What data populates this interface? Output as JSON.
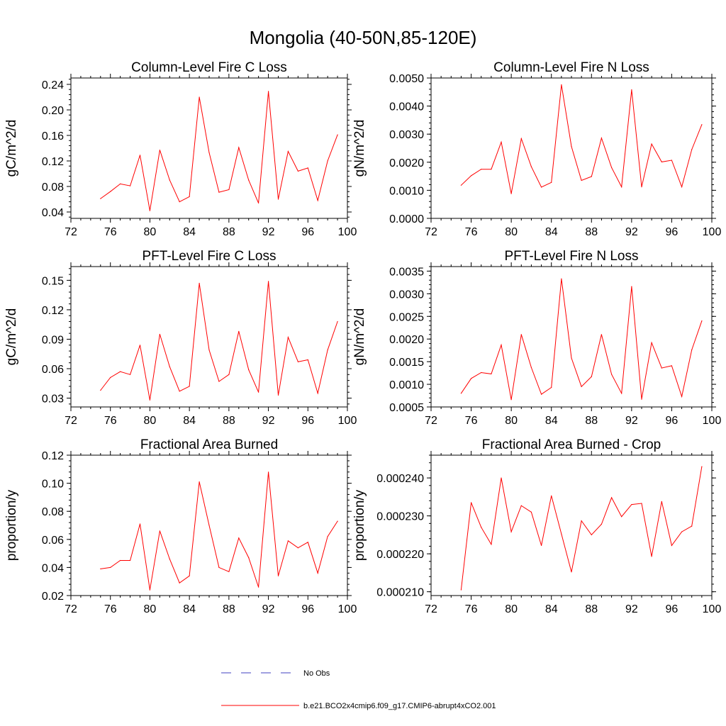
{
  "figure": {
    "title": "Mongolia (40-50N,85-120E)"
  },
  "legend": [
    {
      "label": "No Obs",
      "color": "#4040c0",
      "dash": "dashed"
    },
    {
      "label": "b.e21.BCO2x4cmip6.f09_g17.CMIP6-abrupt4xCO2.001",
      "color": "#ff0000",
      "dash": "solid"
    }
  ],
  "chart_data": [
    {
      "type": "line",
      "title": "Column-Level Fire C Loss",
      "ylabel": "gC/m^2/d",
      "xlabel": "",
      "xlim": [
        72,
        100
      ],
      "ylim": [
        0.03,
        0.25
      ],
      "xticks": [
        72,
        76,
        80,
        84,
        88,
        92,
        96,
        100
      ],
      "xtick_labels": [
        "72",
        "76",
        "80",
        "84",
        "88",
        "92",
        "96",
        "100"
      ],
      "yticks": [
        0.04,
        0.08,
        0.12,
        0.16,
        0.2,
        0.24
      ],
      "ytick_labels": [
        "0.04",
        "0.08",
        "0.12",
        "0.16",
        "0.20",
        "0.24"
      ],
      "series": [
        {
          "name": "b.e21.BCO2x4cmip6.f09_g17.CMIP6-abrupt4xCO2.001",
          "color": "#ff0000",
          "x": [
            75,
            76,
            77,
            78,
            79,
            80,
            81,
            82,
            83,
            84,
            85,
            86,
            87,
            88,
            89,
            90,
            91,
            92,
            93,
            94,
            95,
            96,
            97,
            98,
            99
          ],
          "y": [
            0.061,
            0.072,
            0.084,
            0.081,
            0.129,
            0.042,
            0.137,
            0.09,
            0.056,
            0.064,
            0.22,
            0.133,
            0.071,
            0.075,
            0.141,
            0.09,
            0.054,
            0.229,
            0.06,
            0.135,
            0.104,
            0.109,
            0.058,
            0.12,
            0.161
          ]
        }
      ]
    },
    {
      "type": "line",
      "title": "Column-Level Fire N Loss",
      "ylabel": "gN/m^2/d",
      "xlabel": "",
      "xlim": [
        72,
        100
      ],
      "ylim": [
        0.0,
        0.005
      ],
      "xticks": [
        72,
        76,
        80,
        84,
        88,
        92,
        96,
        100
      ],
      "xtick_labels": [
        "72",
        "76",
        "80",
        "84",
        "88",
        "92",
        "96",
        "100"
      ],
      "yticks": [
        0.0,
        0.001,
        0.002,
        0.003,
        0.004,
        0.005
      ],
      "ytick_labels": [
        "0.0000",
        "0.0010",
        "0.0020",
        "0.0030",
        "0.0040",
        "0.0050"
      ],
      "series": [
        {
          "name": "b.e21.BCO2x4cmip6.f09_g17.CMIP6-abrupt4xCO2.001",
          "color": "#ff0000",
          "x": [
            75,
            76,
            77,
            78,
            79,
            80,
            81,
            82,
            83,
            84,
            85,
            86,
            87,
            88,
            89,
            90,
            91,
            92,
            93,
            94,
            95,
            96,
            97,
            98,
            99
          ],
          "y": [
            0.00118,
            0.00152,
            0.00175,
            0.00175,
            0.00272,
            0.00088,
            0.00284,
            0.00184,
            0.00111,
            0.00128,
            0.00476,
            0.00256,
            0.00135,
            0.00149,
            0.00286,
            0.00181,
            0.00112,
            0.00458,
            0.00112,
            0.00265,
            0.00201,
            0.00207,
            0.00112,
            0.00245,
            0.00334
          ]
        }
      ]
    },
    {
      "type": "line",
      "title": "PFT-Level Fire C Loss",
      "ylabel": "gC/m^2/d",
      "xlabel": "",
      "xlim": [
        72,
        100
      ],
      "ylim": [
        0.021,
        0.164
      ],
      "xticks": [
        72,
        76,
        80,
        84,
        88,
        92,
        96,
        100
      ],
      "xtick_labels": [
        "72",
        "76",
        "80",
        "84",
        "88",
        "92",
        "96",
        "100"
      ],
      "yticks": [
        0.03,
        0.06,
        0.09,
        0.12,
        0.15
      ],
      "ytick_labels": [
        "0.03",
        "0.06",
        "0.09",
        "0.12",
        "0.15"
      ],
      "series": [
        {
          "name": "b.e21.BCO2x4cmip6.f09_g17.CMIP6-abrupt4xCO2.001",
          "color": "#ff0000",
          "x": [
            75,
            76,
            77,
            78,
            79,
            80,
            81,
            82,
            83,
            84,
            85,
            86,
            87,
            88,
            89,
            90,
            91,
            92,
            93,
            94,
            95,
            96,
            97,
            98,
            99
          ],
          "y": [
            0.038,
            0.051,
            0.057,
            0.054,
            0.084,
            0.028,
            0.095,
            0.062,
            0.037,
            0.042,
            0.147,
            0.079,
            0.047,
            0.054,
            0.098,
            0.059,
            0.036,
            0.149,
            0.033,
            0.092,
            0.067,
            0.069,
            0.035,
            0.079,
            0.108
          ]
        }
      ]
    },
    {
      "type": "line",
      "title": "PFT-Level Fire N Loss",
      "ylabel": "gN/m^2/d",
      "xlabel": "",
      "xlim": [
        72,
        100
      ],
      "ylim": [
        0.0005,
        0.0036
      ],
      "xticks": [
        72,
        76,
        80,
        84,
        88,
        92,
        96,
        100
      ],
      "xtick_labels": [
        "72",
        "76",
        "80",
        "84",
        "88",
        "92",
        "96",
        "100"
      ],
      "yticks": [
        0.0005,
        0.001,
        0.0015,
        0.002,
        0.0025,
        0.003,
        0.0035
      ],
      "ytick_labels": [
        "0.0005",
        "0.0010",
        "0.0015",
        "0.0020",
        "0.0025",
        "0.0030",
        "0.0035"
      ],
      "series": [
        {
          "name": "b.e21.BCO2x4cmip6.f09_g17.CMIP6-abrupt4xCO2.001",
          "color": "#ff0000",
          "x": [
            75,
            76,
            77,
            78,
            79,
            80,
            81,
            82,
            83,
            84,
            85,
            86,
            87,
            88,
            89,
            90,
            91,
            92,
            93,
            94,
            95,
            96,
            97,
            98,
            99
          ],
          "y": [
            0.0008,
            0.00113,
            0.00126,
            0.00123,
            0.00187,
            0.00066,
            0.0021,
            0.00137,
            0.00078,
            0.00093,
            0.00333,
            0.00158,
            0.00095,
            0.00117,
            0.0021,
            0.00122,
            0.0008,
            0.00316,
            0.00067,
            0.00192,
            0.00136,
            0.00141,
            0.00073,
            0.00176,
            0.0024
          ]
        }
      ]
    },
    {
      "type": "line",
      "title": "Fractional Area Burned",
      "ylabel": "proportion/y",
      "xlabel": "",
      "xlim": [
        72,
        100
      ],
      "ylim": [
        0.02,
        0.12
      ],
      "xticks": [
        72,
        76,
        80,
        84,
        88,
        92,
        96,
        100
      ],
      "xtick_labels": [
        "72",
        "76",
        "80",
        "84",
        "88",
        "92",
        "96",
        "100"
      ],
      "yticks": [
        0.02,
        0.04,
        0.06,
        0.08,
        0.1,
        0.12
      ],
      "ytick_labels": [
        "0.02",
        "0.04",
        "0.06",
        "0.08",
        "0.10",
        "0.12"
      ],
      "series": [
        {
          "name": "b.e21.BCO2x4cmip6.f09_g17.CMIP6-abrupt4xCO2.001",
          "color": "#ff0000",
          "x": [
            75,
            76,
            77,
            78,
            79,
            80,
            81,
            82,
            83,
            84,
            85,
            86,
            87,
            88,
            89,
            90,
            91,
            92,
            93,
            94,
            95,
            96,
            97,
            98,
            99
          ],
          "y": [
            0.039,
            0.04,
            0.045,
            0.045,
            0.071,
            0.024,
            0.066,
            0.046,
            0.029,
            0.034,
            0.101,
            0.07,
            0.04,
            0.037,
            0.061,
            0.047,
            0.026,
            0.108,
            0.034,
            0.059,
            0.054,
            0.058,
            0.036,
            0.062,
            0.073
          ]
        }
      ]
    },
    {
      "type": "line",
      "title": "Fractional Area Burned - Crop",
      "ylabel": "proportion/y",
      "xlabel": "",
      "xlim": [
        72,
        100
      ],
      "ylim": [
        0.000209,
        0.000246
      ],
      "xticks": [
        72,
        76,
        80,
        84,
        88,
        92,
        96,
        100
      ],
      "xtick_labels": [
        "72",
        "76",
        "80",
        "84",
        "88",
        "92",
        "96",
        "100"
      ],
      "yticks": [
        0.00021,
        0.00022,
        0.00023,
        0.00024
      ],
      "ytick_labels": [
        "0.000210",
        "0.000220",
        "0.000230",
        "0.000240"
      ],
      "series": [
        {
          "name": "b.e21.BCO2x4cmip6.f09_g17.CMIP6-abrupt4xCO2.001",
          "color": "#ff0000",
          "x": [
            75,
            76,
            77,
            78,
            79,
            80,
            81,
            82,
            83,
            84,
            85,
            86,
            87,
            88,
            89,
            90,
            91,
            92,
            93,
            94,
            95,
            96,
            97,
            98,
            99
          ],
          "y": [
            0.0002105,
            0.0002335,
            0.000227,
            0.0002225,
            0.00024,
            0.0002258,
            0.0002327,
            0.000231,
            0.0002222,
            0.0002353,
            0.0002252,
            0.0002152,
            0.0002287,
            0.000225,
            0.0002278,
            0.0002348,
            0.0002298,
            0.000233,
            0.0002333,
            0.0002193,
            0.0002338,
            0.0002222,
            0.0002258,
            0.0002273,
            0.000243
          ]
        }
      ]
    }
  ]
}
